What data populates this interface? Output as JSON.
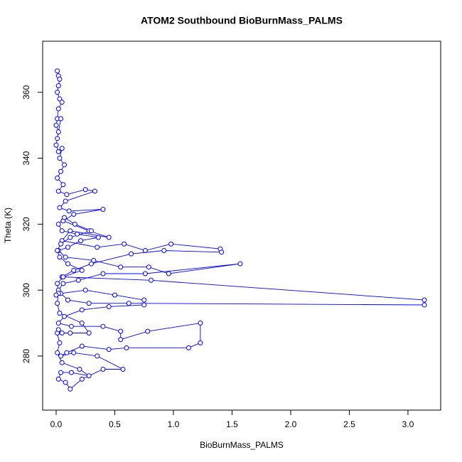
{
  "chart_data": {
    "type": "line",
    "title": "ATOM2 Southbound BioBurnMass_PALMS",
    "x_label": "BioBurnMass_PALMS",
    "y_label": "Theta (K)",
    "xlim": [
      -0.115,
      3.279
    ],
    "ylim": [
      263.6,
      375.5
    ],
    "xticks": [
      {
        "value": 0,
        "label": "0.0"
      },
      {
        "value": 0.5,
        "label": "0.5"
      },
      {
        "value": 1,
        "label": "1.0"
      },
      {
        "value": 1.5,
        "label": "1.5"
      },
      {
        "value": 2,
        "label": "2.0"
      },
      {
        "value": 2.5,
        "label": "2.5"
      },
      {
        "value": 3,
        "label": "3.0"
      }
    ],
    "yticks": [
      280,
      300,
      320,
      340,
      360
    ],
    "series": [
      {
        "color": "#0000ff",
        "x": [
          0.01,
          0.02,
          0.03,
          0.02,
          0.01,
          0.03,
          0.05,
          0.02,
          0.01,
          0.0,
          0.02,
          0.04,
          0.01,
          0.0,
          0.02,
          0.05,
          0.03,
          0.07,
          0.04,
          0.01,
          0.06,
          0.02,
          0.09,
          0.25,
          0.33,
          0.08,
          0.03,
          0.11,
          0.4,
          0.15,
          0.06,
          0.28,
          0.45,
          0.12,
          0.05,
          0.35,
          0.58,
          0.76,
          0.98,
          1.4,
          1.41,
          0.92,
          0.64,
          0.3,
          0.15,
          0.05,
          0.81,
          3.14,
          3.14,
          0.62,
          0.28,
          0.1,
          0.04,
          0.25,
          0.5,
          0.75,
          0.75,
          0.45,
          0.22,
          0.07,
          0.02,
          0.13,
          0.4,
          0.55,
          0.55,
          0.78,
          1.23,
          1.23,
          1.13,
          0.6,
          0.45,
          0.22,
          0.09,
          0.04,
          0.15,
          0.35,
          0.57,
          0.4,
          0.22,
          0.12,
          0.08,
          0.02,
          0.04,
          0.13,
          0.28,
          0.2,
          0.05,
          0.01,
          0.03,
          0.01,
          0.02,
          0.05,
          0.12,
          0.28,
          0.22,
          0.03,
          0.01,
          0.02,
          0.06,
          0.19,
          0.4,
          0.76,
          1.57,
          0.96,
          0.79,
          0.55,
          0.32,
          0.08,
          0.02,
          0.1,
          0.21,
          0.36,
          0.18,
          0.05,
          0.02,
          0.07,
          0.16,
          0.3,
          0.12,
          0.04,
          0.01,
          0.03,
          0.1,
          0.22,
          0.06,
          0.01,
          0.02,
          0.0
        ],
        "values": [
          366.5,
          365,
          364,
          362,
          360,
          358,
          357,
          355,
          352,
          350,
          348,
          352,
          346,
          344,
          342,
          343,
          340,
          338,
          336,
          334,
          332,
          330,
          329,
          330.5,
          330,
          327,
          325,
          324,
          324.5,
          323,
          321,
          318,
          316,
          318,
          315,
          313,
          314,
          312,
          314,
          312.5,
          311.5,
          312,
          311,
          308,
          306,
          304,
          303,
          297,
          295.5,
          296,
          296,
          297,
          299,
          300,
          298.5,
          297,
          295.5,
          295,
          294,
          292,
          290,
          289,
          289,
          287.5,
          285,
          287.5,
          290,
          284,
          282.5,
          282.5,
          282,
          283,
          281,
          280,
          281,
          280,
          276,
          276,
          273,
          270,
          272,
          273,
          275,
          275,
          274,
          276,
          278,
          281,
          284,
          287,
          288,
          287,
          287,
          287,
          290,
          293,
          296,
          300,
          302,
          303,
          305,
          305,
          308,
          305,
          307,
          307,
          309,
          310,
          312,
          313,
          315,
          316,
          317,
          318,
          320,
          322,
          320,
          318,
          316,
          314,
          312,
          310,
          308,
          306,
          304,
          302,
          299,
          298.5
        ]
      }
    ]
  }
}
